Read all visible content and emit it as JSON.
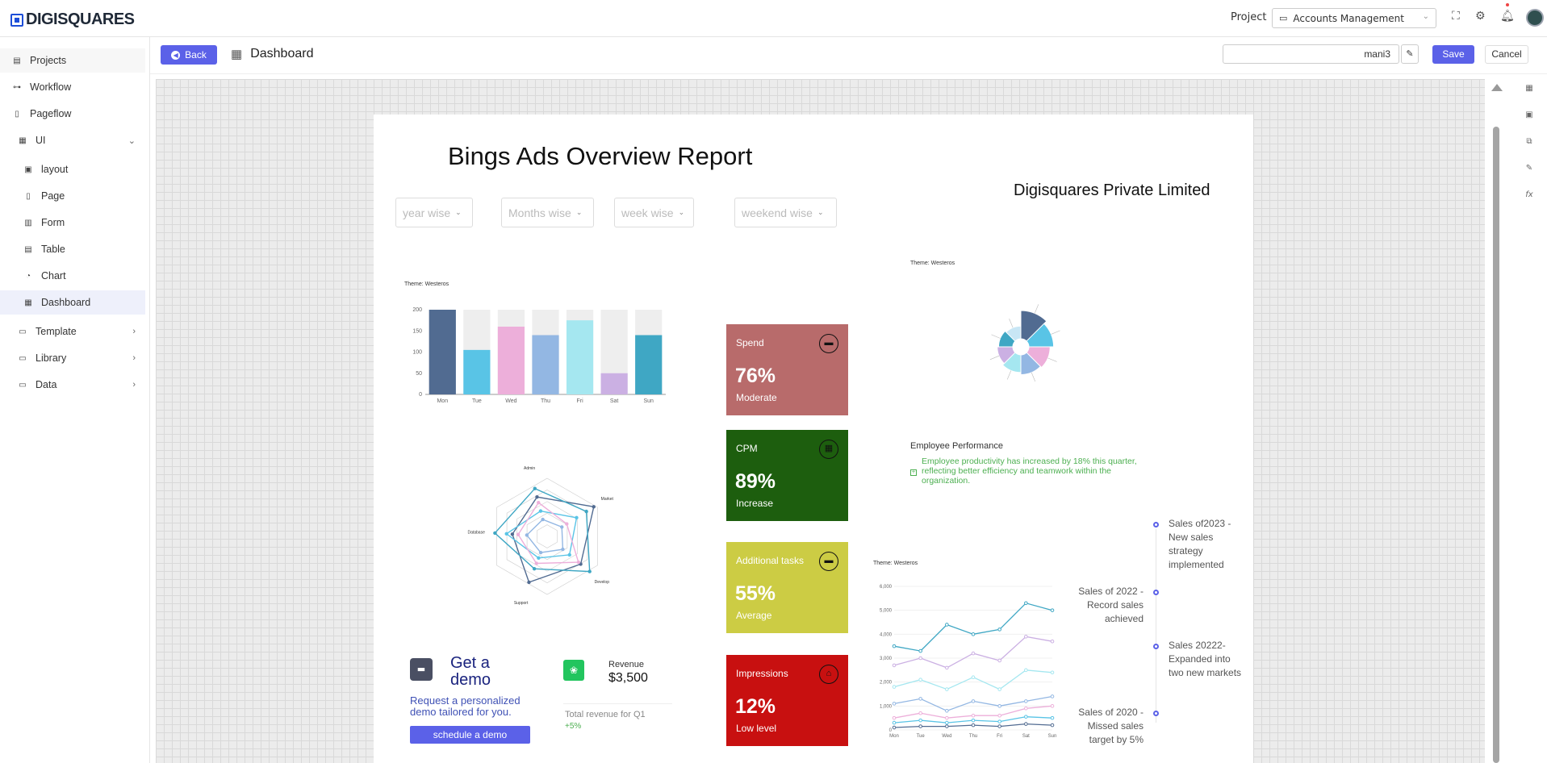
{
  "app": {
    "logo_text": "DIGISQUARES"
  },
  "topbar": {
    "project_label": "Project",
    "project_value": "Accounts Management"
  },
  "sidebar": {
    "items": [
      {
        "label": "Projects"
      },
      {
        "label": "Workflow"
      },
      {
        "label": "Pageflow"
      },
      {
        "label": "UI"
      },
      {
        "label": "layout"
      },
      {
        "label": "Page"
      },
      {
        "label": "Form"
      },
      {
        "label": "Table"
      },
      {
        "label": "Chart"
      },
      {
        "label": "Dashboard"
      },
      {
        "label": "Template"
      },
      {
        "label": "Library"
      },
      {
        "label": "Data"
      }
    ]
  },
  "header": {
    "back_label": "Back",
    "title": "Dashboard",
    "name_value": "mani3",
    "save_label": "Save",
    "cancel_label": "Cancel"
  },
  "report": {
    "title": "Bings Ads Overview Report",
    "company": "Digisquares Private Limited",
    "filters": [
      "year wise",
      "Months wise",
      "week wise",
      "weekend wise"
    ]
  },
  "kpis": [
    {
      "title": "Spend",
      "value": "76%",
      "status": "Moderate",
      "color": "#b86b6b"
    },
    {
      "title": "CPM",
      "value": "89%",
      "status": "Increase",
      "color": "#1d5e0e"
    },
    {
      "title": "Additional tasks",
      "value": "55%",
      "status": "Average",
      "color": "#cccc44"
    },
    {
      "title": "Impressions",
      "value": "12%",
      "status": "Low level",
      "color": "#c81010"
    }
  ],
  "charts": {
    "theme_label": "Theme: Westeros"
  },
  "chart_data": [
    {
      "type": "bar",
      "categories": [
        "Mon",
        "Tue",
        "Wed",
        "Thu",
        "Fri",
        "Sat",
        "Sun"
      ],
      "values": [
        200,
        105,
        160,
        140,
        175,
        50,
        140
      ],
      "background_max": 200,
      "ylim": [
        0,
        200
      ],
      "yticks": [
        0,
        50,
        100,
        150,
        200
      ],
      "colors": [
        "#516b91",
        "#59c4e6",
        "#edafda",
        "#93b7e3",
        "#a5e7f0",
        "#cbb0e3",
        "#3fa7c4"
      ]
    },
    {
      "type": "radar",
      "indicators": [
        "Market",
        "Develop",
        "Support",
        "Database",
        "Admin"
      ],
      "series": [
        {
          "values": [
            0.95,
            0.75,
            0.85,
            0.6,
            0.7
          ],
          "color": "#516b91"
        },
        {
          "values": [
            0.8,
            0.95,
            0.6,
            0.9,
            0.85
          ],
          "color": "#3fa7c4"
        },
        {
          "values": [
            0.6,
            0.5,
            0.4,
            0.7,
            0.45
          ],
          "color": "#59c4e6"
        },
        {
          "values": [
            0.4,
            0.7,
            0.5,
            0.5,
            0.6
          ],
          "color": "#edafda"
        },
        {
          "values": [
            0.3,
            0.35,
            0.3,
            0.35,
            0.3
          ],
          "color": "#93b7e3"
        }
      ]
    },
    {
      "type": "pie",
      "variant": "rose",
      "values": [
        40,
        35,
        30,
        28,
        25,
        22,
        20,
        18
      ],
      "colors": [
        "#516b91",
        "#59c4e6",
        "#edafda",
        "#93b7e3",
        "#a5e7f0",
        "#cbb0e3",
        "#3fa7c4",
        "#c8e6f5"
      ]
    },
    {
      "type": "line",
      "categories": [
        "Mon",
        "Tue",
        "Wed",
        "Thu",
        "Fri",
        "Sat",
        "Sun"
      ],
      "ylim": [
        0,
        6000
      ],
      "yticks": [
        0,
        1000,
        2000,
        3000,
        4000,
        5000,
        6000
      ],
      "series": [
        {
          "values": [
            3500,
            3300,
            4400,
            4000,
            4200,
            5300,
            5000
          ],
          "color": "#3fa7c4"
        },
        {
          "values": [
            2700,
            3000,
            2600,
            3200,
            2900,
            3900,
            3700
          ],
          "color": "#cbb0e3"
        },
        {
          "values": [
            1800,
            2100,
            1700,
            2200,
            1700,
            2500,
            2400
          ],
          "color": "#a5e7f0"
        },
        {
          "values": [
            1100,
            1300,
            800,
            1200,
            1000,
            1200,
            1400
          ],
          "color": "#93b7e3"
        },
        {
          "values": [
            500,
            700,
            500,
            600,
            600,
            900,
            1000
          ],
          "color": "#edafda"
        },
        {
          "values": [
            300,
            400,
            300,
            400,
            350,
            550,
            500
          ],
          "color": "#59c4e6"
        },
        {
          "values": [
            100,
            150,
            150,
            200,
            150,
            250,
            200
          ],
          "color": "#516b91"
        }
      ]
    }
  ],
  "employee": {
    "title": "Employee Performance",
    "text": "Employee productivity has increased by 18% this quarter, reflecting better efficiency and teamwork within the organization."
  },
  "timeline": [
    {
      "text": "Sales of2023 - New sales strategy implemented"
    },
    {
      "text": "Sales of 2022 - Record sales achieved"
    },
    {
      "text": "Sales 20222- Expanded into two new markets"
    },
    {
      "text": "Sales of 2020 - Missed sales target by 5%"
    }
  ],
  "demo": {
    "title": "Get a demo",
    "text": "Request a personalized demo tailored for you.",
    "button": "schedule a demo"
  },
  "revenue": {
    "label": "Revenue",
    "value": "$3,500",
    "sub": "Total revenue for Q1",
    "change": "+5%"
  }
}
